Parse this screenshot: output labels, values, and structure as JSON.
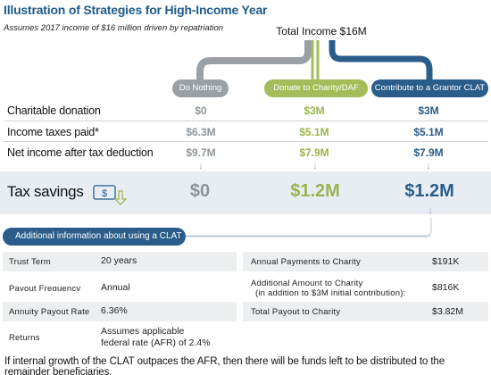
{
  "header": {
    "title": "Illustration of Strategies for High-Income Year",
    "subtitle": "Assumes 2017 income of $16 million driven by repatriation",
    "total_income": "Total Income $16M"
  },
  "strategies": {
    "do_nothing": "Do Nothing",
    "donate": "Donate to Charity/DAF",
    "clat": "Contribute to a Grantor CLAT"
  },
  "rows": [
    {
      "label": "Charitable donation",
      "values": [
        "$0",
        "$3M",
        "$3M"
      ]
    },
    {
      "label": "Income taxes paid*",
      "values": [
        "$6.3M",
        "$5.1M",
        "$5.1M"
      ]
    },
    {
      "label": "Net income after tax deduction",
      "values": [
        "$9.7M",
        "$7.9M",
        "$7.9M"
      ]
    }
  ],
  "savings": {
    "label": "Tax savings",
    "values": [
      "$0",
      "$1.2M",
      "$1.2M"
    ]
  },
  "colors": {
    "gray": "#9aa1a6",
    "green": "#a3bd5a",
    "blue": "#2a5d8a"
  },
  "clat_info": {
    "banner": "Additional information about using a CLAT",
    "left": [
      {
        "label": "Trust Term",
        "value": "20 years"
      },
      {
        "label": "Payout Frequency",
        "value": "Annual"
      },
      {
        "label": "Annuity Payout Rate",
        "value": "6.36%"
      },
      {
        "label": "Returns",
        "value_line1": "Assumes applicable",
        "value_line2": "federal rate (AFR) of 2.4%"
      }
    ],
    "right": [
      {
        "label": "Annual Payments to Charity",
        "value": "$191K"
      },
      {
        "label": "Additional Amount to Charity",
        "label_line2": "(in addition to $3M initial contribution):",
        "value": "$816K"
      },
      {
        "label": "Total Payout to Charity",
        "value": "$3.82M"
      }
    ],
    "footnote": "If internal growth of the CLAT outpaces the AFR, then there will be funds left to be distributed to the remainder beneficiaries."
  }
}
